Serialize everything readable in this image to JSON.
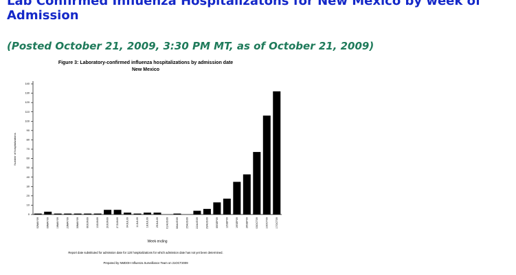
{
  "heading": "Lab Confirmed Influenza Hospitalizatons for New Mexico by week of Admission",
  "posted": "(Posted October 21, 2009, 3:30 PM MT, as of October 21, 2009)",
  "chart_data": {
    "type": "bar",
    "title": "Figure 3: Laboratory-confirmed influenza hospitalizations by admission date",
    "subtitle": "New Mexico",
    "y_label": "Number of hospitalizations",
    "x_label": "Week ending",
    "notes": [
      "Report date substituted for admission date for 120 hospitalizations for which admission date has not yet been determined.",
      "Prepared by NMDOH Influenza Surveillance Team on 21OCT2009"
    ],
    "categories": [
      "02MAY09",
      "09MAY09",
      "16MAY09",
      "23MAY09",
      "30MAY09",
      "06JUN09",
      "13JUN09",
      "20JUN09",
      "27JUN09",
      "04JUL09",
      "11JUL09",
      "18JUL09",
      "25JUL09",
      "01AUG09",
      "08AUG09",
      "15AUG09",
      "22AUG09",
      "29AUG09",
      "05SEP09",
      "12SEP09",
      "19SEP09",
      "26SEP09",
      "03OCT09",
      "10OCT09",
      "17OCT09"
    ],
    "values": [
      1,
      3,
      1,
      1,
      1,
      1,
      1,
      5,
      5,
      2,
      1,
      2,
      2,
      0,
      1,
      0,
      4,
      6,
      13,
      17,
      35,
      43,
      67,
      106,
      132
    ],
    "color": "#000000",
    "ylim": [
      0,
      140
    ],
    "yticks": [
      0,
      10,
      20,
      30,
      40,
      50,
      60,
      70,
      80,
      90,
      100,
      110,
      120,
      130,
      140
    ],
    "grid": false
  }
}
